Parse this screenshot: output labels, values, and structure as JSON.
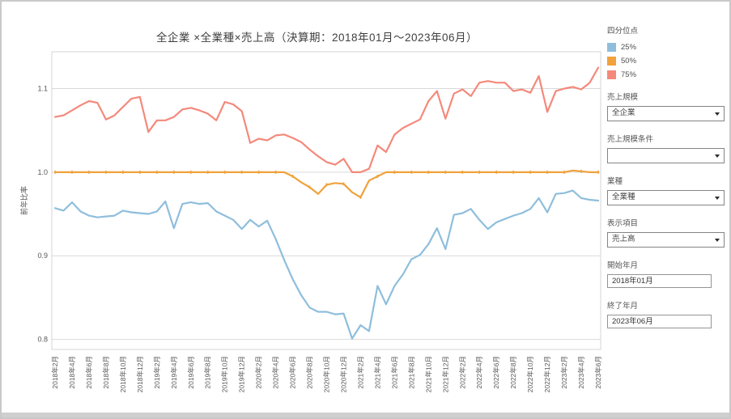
{
  "title": "全企業 ×全業種×売上高（決算期：2018年01月〜2023年06月）",
  "legend": {
    "title": "四分位点",
    "items": [
      {
        "label": "25%",
        "color": "#8FBEDC"
      },
      {
        "label": "50%",
        "color": "#F0A23C"
      },
      {
        "label": "75%",
        "color": "#F4897B"
      }
    ]
  },
  "controls": [
    {
      "label": "売上規模",
      "value": "全企業",
      "type": "select"
    },
    {
      "label": "売上規模条件",
      "value": "",
      "type": "select"
    },
    {
      "label": "業種",
      "value": "全業種",
      "type": "select"
    },
    {
      "label": "表示項目",
      "value": "売上高",
      "type": "select"
    },
    {
      "label": "開始年月",
      "value": "2018年01月",
      "type": "input"
    },
    {
      "label": "終了年月",
      "value": "2023年06月",
      "type": "input"
    }
  ],
  "chart_data": {
    "type": "line",
    "title": "全企業 ×全業種×売上高（決算期：2018年01月〜2023年06月）",
    "xlabel": "",
    "ylabel": "前年比率",
    "ylim": [
      0.788,
      1.144
    ],
    "yticks": [
      "0.8",
      "0.9",
      "1.0",
      "1.1"
    ],
    "ytick_values": [
      0.8,
      0.9,
      1.0,
      1.1
    ],
    "grid": true,
    "legend_position": "top-right",
    "x_range": {
      "start": "2018年2月",
      "end": "2023年6月",
      "step": "1month",
      "points": 65
    },
    "x_tick_labels": [
      "2018年2月",
      "2018年4月",
      "2018年6月",
      "2018年8月",
      "2018年10月",
      "2018年12月",
      "2019年2月",
      "2019年4月",
      "2019年6月",
      "2019年8月",
      "2019年10月",
      "2019年12月",
      "2020年2月",
      "2020年4月",
      "2020年6月",
      "2020年8月",
      "2020年10月",
      "2020年12月",
      "2021年2月",
      "2021年4月",
      "2021年6月",
      "2021年8月",
      "2021年10月",
      "2021年12月",
      "2022年2月",
      "2022年4月",
      "2022年6月",
      "2022年8月",
      "2022年10月",
      "2022年12月",
      "2023年2月",
      "2023年4月",
      "2023年6月"
    ],
    "series": [
      {
        "name": "25%",
        "color": "#8FBEDC",
        "markers": false,
        "values": [
          0.957,
          0.954,
          0.964,
          0.953,
          0.948,
          0.946,
          0.947,
          0.948,
          0.954,
          0.952,
          0.951,
          0.95,
          0.953,
          0.965,
          0.933,
          0.962,
          0.964,
          0.962,
          0.963,
          0.953,
          0.948,
          0.943,
          0.932,
          0.943,
          0.935,
          0.942,
          0.92,
          0.895,
          0.872,
          0.853,
          0.838,
          0.833,
          0.833,
          0.83,
          0.831,
          0.801,
          0.817,
          0.81,
          0.864,
          0.842,
          0.864,
          0.878,
          0.896,
          0.901,
          0.914,
          0.933,
          0.908,
          0.949,
          0.951,
          0.956,
          0.943,
          0.932,
          0.94,
          0.944,
          0.948,
          0.951,
          0.956,
          0.969,
          0.952,
          0.974,
          0.975,
          0.978,
          0.969,
          0.967,
          0.966
        ]
      },
      {
        "name": "50%",
        "color": "#F0A23C",
        "markers": true,
        "values": [
          1.0,
          1.0,
          1.0,
          1.0,
          1.0,
          1.0,
          1.0,
          1.0,
          1.0,
          1.0,
          1.0,
          1.0,
          1.0,
          1.0,
          1.0,
          1.0,
          1.0,
          1.0,
          1.0,
          1.0,
          1.0,
          1.0,
          1.0,
          1.0,
          1.0,
          1.0,
          1.0,
          1.0,
          0.995,
          0.988,
          0.982,
          0.974,
          0.985,
          0.987,
          0.986,
          0.976,
          0.97,
          0.99,
          0.995,
          1.0,
          1.0,
          1.0,
          1.0,
          1.0,
          1.0,
          1.0,
          1.0,
          1.0,
          1.0,
          1.0,
          1.0,
          1.0,
          1.0,
          1.0,
          1.0,
          1.0,
          1.0,
          1.0,
          1.0,
          1.0,
          1.0,
          1.002,
          1.001,
          1.0,
          1.0
        ]
      },
      {
        "name": "75%",
        "color": "#F4897B",
        "markers": false,
        "values": [
          1.066,
          1.068,
          1.074,
          1.08,
          1.085,
          1.083,
          1.063,
          1.068,
          1.078,
          1.088,
          1.09,
          1.048,
          1.062,
          1.062,
          1.066,
          1.075,
          1.077,
          1.074,
          1.07,
          1.062,
          1.084,
          1.081,
          1.073,
          1.035,
          1.04,
          1.038,
          1.044,
          1.045,
          1.041,
          1.036,
          1.027,
          1.019,
          1.012,
          1.009,
          1.016,
          1.0,
          1.0,
          1.004,
          1.032,
          1.024,
          1.045,
          1.053,
          1.058,
          1.063,
          1.085,
          1.097,
          1.064,
          1.094,
          1.099,
          1.091,
          1.107,
          1.109,
          1.107,
          1.107,
          1.097,
          1.099,
          1.095,
          1.115,
          1.072,
          1.097,
          1.1,
          1.102,
          1.099,
          1.107,
          1.125
        ]
      }
    ]
  }
}
